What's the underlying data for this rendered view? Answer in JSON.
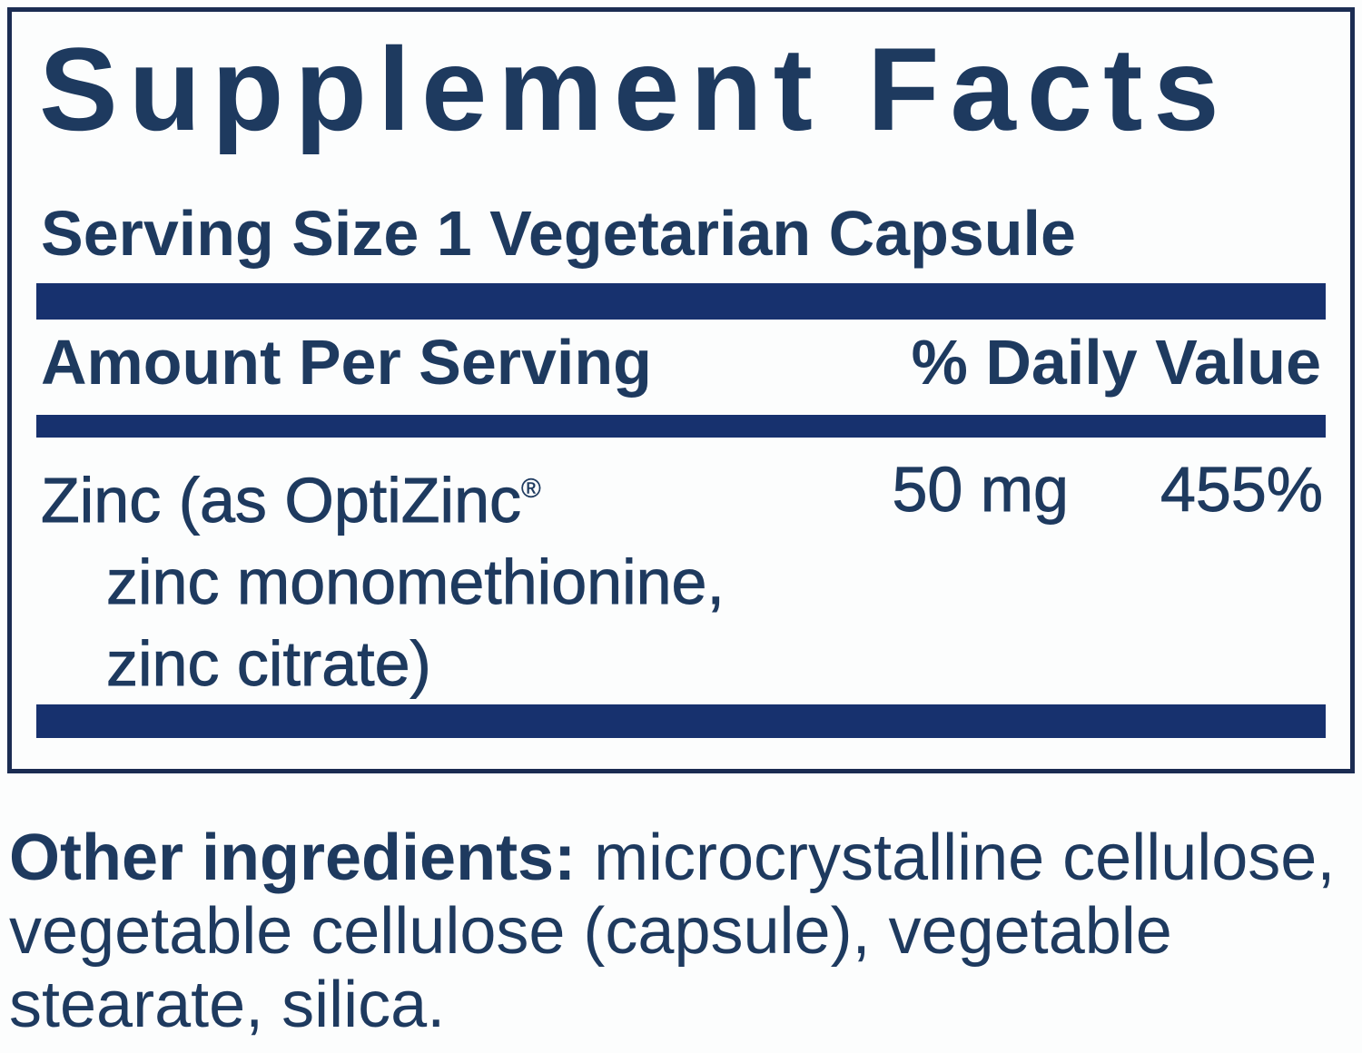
{
  "colors": {
    "navy": "#17316e",
    "text": "#1e3a5f",
    "border": "#1b2c52",
    "background": "#fcfdfd"
  },
  "panel": {
    "title": "Supplement Facts",
    "serving_size": "Serving Size 1 Vegetarian Capsule",
    "amount_header": "Amount Per Serving",
    "daily_value_header": "% Daily Value",
    "zinc": {
      "name_line1": "Zinc (as OptiZinc",
      "trademark": "®",
      "name_line2": "zinc monomethionine,",
      "name_line3": "zinc citrate)",
      "amount": "50 mg",
      "daily_value": "455%"
    }
  },
  "footer": {
    "label": "Other ingredients:",
    "line1_rest": " microcrystalline cellulose,",
    "line2": "vegetable cellulose (capsule), vegetable",
    "line3": "stearate, silica."
  }
}
